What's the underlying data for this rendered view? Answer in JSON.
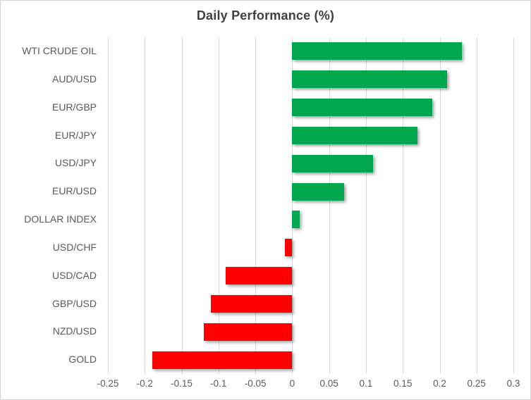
{
  "title": "Daily Performance (%)",
  "colors": {
    "positive_bar": "#00A74F",
    "negative_bar": "#FF0000",
    "gridline": "#D9D9D9",
    "axis_text": "#595959",
    "title_text": "#404040",
    "chart_border": "#D6D6D6",
    "background": "#FFFFFF"
  },
  "chart_data": {
    "type": "bar",
    "orientation": "horizontal",
    "title": "Daily Performance (%)",
    "categories": [
      "WTI CRUDE OIL",
      "AUD/USD",
      "EUR/GBP",
      "EUR/JPY",
      "USD/JPY",
      "EUR/USD",
      "DOLLAR INDEX",
      "USD/CHF",
      "USD/CAD",
      "GBP/USD",
      "NZD/USD",
      "GOLD"
    ],
    "values": [
      0.23,
      0.21,
      0.19,
      0.17,
      0.11,
      0.07,
      0.01,
      -0.01,
      -0.09,
      -0.11,
      -0.12,
      -0.19
    ],
    "xlabel": "",
    "ylabel": "",
    "xlim": [
      -0.25,
      0.3
    ],
    "xticks": [
      -0.25,
      -0.2,
      -0.15,
      -0.1,
      -0.05,
      0,
      0.05,
      0.1,
      0.15,
      0.2,
      0.25,
      0.3
    ],
    "xtick_labels": [
      "-0.25",
      "-0.2",
      "-0.15",
      "-0.1",
      "-0.05",
      "0",
      "0.05",
      "0.1",
      "0.15",
      "0.2",
      "0.25",
      "0.3"
    ],
    "grid": true,
    "legend": false
  }
}
